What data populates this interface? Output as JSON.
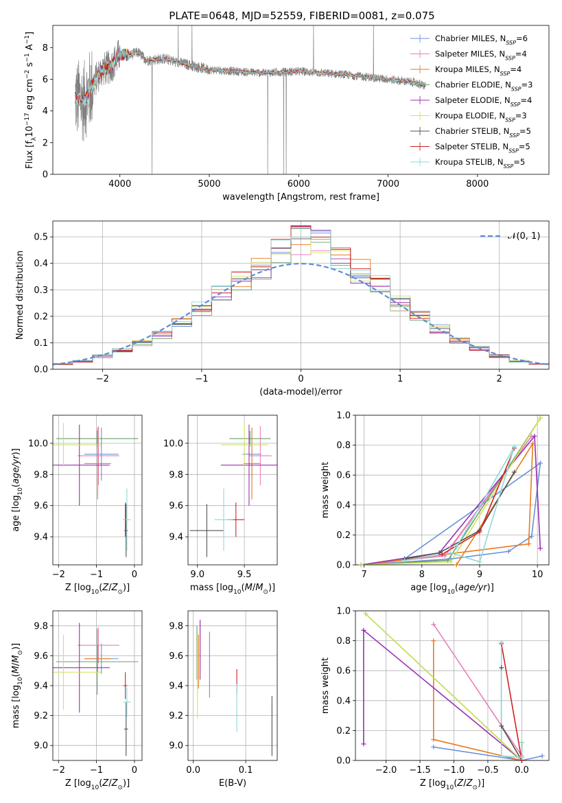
{
  "figure": {
    "title": "PLATE=0648, MJD=52559, FIBERID=0081, z=0.075"
  },
  "colors": {
    "Chabrier MILES": "#6a8fdc",
    "Salpeter MILES": "#e87dba",
    "Kroupa MILES": "#e87a1c",
    "Chabrier ELODIE": "#6aa06a",
    "Salpeter ELODIE": "#9a2fb0",
    "Kroupa ELODIE": "#cfe35a",
    "Chabrier STELIB": "#505050",
    "Salpeter STELIB": "#d22020",
    "Kroupa STELIB": "#8fd8d8"
  },
  "chart_data": [
    {
      "id": "spectrum",
      "type": "line",
      "title": "PLATE=0648, MJD=52559, FIBERID=0081, z=0.075",
      "xlabel": "wavelength [Angstrom, rest frame]",
      "ylabel": "Flux [f_λ 10^-17 erg cm^-2 s^-1 A^-1]",
      "xlim": [
        3250,
        8800
      ],
      "ylim": [
        0,
        9.4
      ],
      "xticks": [
        4000,
        5000,
        6000,
        7000,
        8000
      ],
      "yticks": [
        0,
        2,
        4,
        6,
        8
      ],
      "grid": false,
      "legend_position": "upper-right",
      "data_color": "#808080",
      "data_envelope": {
        "x": [
          3500,
          3600,
          3700,
          3800,
          3900,
          4000,
          4100,
          4200,
          4300,
          4500,
          4700,
          5000,
          5300,
          5600,
          6000,
          6500,
          7000,
          7300,
          7400
        ],
        "y": [
          4.8,
          4.6,
          5.7,
          6.6,
          6.8,
          7.6,
          7.5,
          7.7,
          7.2,
          7.3,
          7.0,
          6.6,
          6.5,
          6.4,
          6.5,
          6.3,
          6.0,
          5.8,
          5.6
        ]
      },
      "legend": [
        {
          "name": "Chabrier MILES",
          "nssp": "6"
        },
        {
          "name": "Salpeter MILES",
          "nssp": "4"
        },
        {
          "name": "Kroupa MILES",
          "nssp": "4"
        },
        {
          "name": "Chabrier ELODIE",
          "nssp": "3"
        },
        {
          "name": "Salpeter ELODIE",
          "nssp": "4"
        },
        {
          "name": "Kroupa ELODIE",
          "nssp": "3"
        },
        {
          "name": "Chabrier STELIB",
          "nssp": "5"
        },
        {
          "name": "Salpeter STELIB",
          "nssp": "5"
        },
        {
          "name": "Kroupa STELIB",
          "nssp": "5"
        }
      ]
    },
    {
      "id": "residuals",
      "type": "line",
      "xlabel": "(data-model)/error",
      "ylabel": "Normed distribution",
      "xlim": [
        -2.5,
        2.5
      ],
      "ylim": [
        0,
        0.56
      ],
      "xticks": [
        -2,
        -1,
        0,
        1,
        2
      ],
      "yticks": [
        0.0,
        0.1,
        0.2,
        0.3,
        0.4,
        0.5
      ],
      "grid": true,
      "legend_position": "upper-right",
      "legend_label": "𝒩(0, 1)",
      "gaussian_color": "#5b8bd8",
      "histogram_bins": [
        -2.5,
        -2.3,
        -2.1,
        -1.9,
        -1.7,
        -1.5,
        -1.3,
        -1.1,
        -0.9,
        -0.7,
        -0.5,
        -0.3,
        -0.1,
        0.1,
        0.3,
        0.5,
        0.7,
        0.9,
        1.1,
        1.3,
        1.5,
        1.7,
        1.9,
        2.1,
        2.3,
        2.5
      ],
      "histogram_values": [
        0.02,
        0.03,
        0.05,
        0.07,
        0.1,
        0.13,
        0.18,
        0.23,
        0.28,
        0.33,
        0.38,
        0.45,
        0.49,
        0.47,
        0.42,
        0.37,
        0.32,
        0.25,
        0.2,
        0.15,
        0.11,
        0.08,
        0.05,
        0.03,
        0.02
      ]
    },
    {
      "id": "age-vs-Z",
      "type": "scatter",
      "xlabel": "Z [log10(Z/Z⊙)]",
      "ylabel": "age  [log10(age/yr)]",
      "xlim": [
        -2.15,
        0.2
      ],
      "ylim": [
        9.22,
        10.18
      ],
      "xticks": [
        -2,
        -1,
        0
      ],
      "yticks": [
        9.4,
        9.6,
        9.8,
        10.0
      ],
      "grid": true,
      "points": [
        {
          "model": "Chabrier MILES",
          "x": -0.87,
          "y": 9.93,
          "xerr": 0.45,
          "yerr": 0.17
        },
        {
          "model": "Salpeter MILES",
          "x": -0.95,
          "y": 9.92,
          "xerr": 0.55,
          "yerr": 0.19
        },
        {
          "model": "Kroupa MILES",
          "x": -0.97,
          "y": 9.87,
          "xerr": 0.35,
          "yerr": 0.23
        },
        {
          "model": "Chabrier ELODIE",
          "x": -0.98,
          "y": 10.03,
          "xerr": 1.08,
          "yerr": 0.05
        },
        {
          "model": "Salpeter ELODIE",
          "x": -1.45,
          "y": 9.86,
          "xerr": 0.8,
          "yerr": 0.26
        },
        {
          "model": "Kroupa ELODIE",
          "x": -1.87,
          "y": 9.99,
          "xerr": 1.0,
          "yerr": 0.14
        },
        {
          "model": "Chabrier STELIB",
          "x": -0.22,
          "y": 9.44,
          "xerr": 0.05,
          "yerr": 0.17
        },
        {
          "model": "Salpeter STELIB",
          "x": -0.24,
          "y": 9.51,
          "xerr": 0.05,
          "yerr": 0.11
        },
        {
          "model": "Kroupa STELIB",
          "x": -0.2,
          "y": 9.51,
          "xerr": 0.1,
          "yerr": 0.2
        }
      ]
    },
    {
      "id": "age-vs-mass",
      "type": "scatter",
      "xlabel": "mass [log10(M/M⊙)]",
      "ylabel": "",
      "xlim": [
        8.9,
        9.85
      ],
      "ylim": [
        9.22,
        10.18
      ],
      "xticks": [
        9.0,
        9.5
      ],
      "yticks": [
        9.4,
        9.6,
        9.8,
        10.0
      ],
      "grid": true,
      "points": [
        {
          "model": "Chabrier MILES",
          "x": 9.58,
          "y": 9.93,
          "xerr": 0.1,
          "yerr": 0.17
        },
        {
          "model": "Salpeter MILES",
          "x": 9.67,
          "y": 9.92,
          "xerr": 0.12,
          "yerr": 0.19
        },
        {
          "model": "Kroupa MILES",
          "x": 9.58,
          "y": 9.87,
          "xerr": 0.09,
          "yerr": 0.23
        },
        {
          "model": "Chabrier ELODIE",
          "x": 9.56,
          "y": 10.03,
          "xerr": 0.22,
          "yerr": 0.05
        },
        {
          "model": "Salpeter ELODIE",
          "x": 9.55,
          "y": 9.86,
          "xerr": 0.3,
          "yerr": 0.26
        },
        {
          "model": "Kroupa ELODIE",
          "x": 9.5,
          "y": 9.99,
          "xerr": 0.25,
          "yerr": 0.14
        },
        {
          "model": "Chabrier STELIB",
          "x": 9.1,
          "y": 9.44,
          "xerr": 0.18,
          "yerr": 0.17
        },
        {
          "model": "Salpeter STELIB",
          "x": 9.41,
          "y": 9.51,
          "xerr": 0.09,
          "yerr": 0.11
        },
        {
          "model": "Kroupa STELIB",
          "x": 9.28,
          "y": 9.51,
          "xerr": 0.1,
          "yerr": 0.2
        }
      ]
    },
    {
      "id": "mass-weight-vs-age",
      "type": "line",
      "xlabel": "age  [log10(age/yr)]",
      "ylabel": "mass weight",
      "xlim": [
        6.85,
        10.2
      ],
      "ylim": [
        0,
        1.0
      ],
      "xticks": [
        7,
        8,
        9,
        10
      ],
      "yticks": [
        0.0,
        0.2,
        0.4,
        0.6,
        0.8,
        1.0
      ],
      "grid": true,
      "series": [
        {
          "model": "Chabrier MILES",
          "x": [
            6.95,
            8.5,
            9.5,
            9.9,
            10.05,
            7.7
          ],
          "y": [
            0.0,
            0.04,
            0.09,
            0.19,
            0.68,
            0.04
          ]
        },
        {
          "model": "Salpeter MILES",
          "x": [
            6.95,
            8.4,
            9.9,
            8.5
          ],
          "y": [
            0.0,
            0.06,
            0.86,
            0.12
          ]
        },
        {
          "model": "Kroupa MILES",
          "x": [
            6.95,
            9.85,
            9.92,
            8.6
          ],
          "y": [
            0.0,
            0.14,
            0.81,
            0.0
          ]
        },
        {
          "model": "Chabrier ELODIE",
          "x": [
            6.95,
            8.45,
            10.05
          ],
          "y": [
            0.0,
            0.03,
            0.98
          ]
        },
        {
          "model": "Salpeter ELODIE",
          "x": [
            6.95,
            8.3,
            9.95,
            10.05
          ],
          "y": [
            0.0,
            0.08,
            0.86,
            0.11
          ]
        },
        {
          "model": "Kroupa ELODIE",
          "x": [
            6.95,
            8.5,
            10.05
          ],
          "y": [
            0.0,
            0.02,
            0.98
          ]
        },
        {
          "model": "Chabrier STELIB",
          "x": [
            7.7,
            8.3,
            9.0,
            9.6
          ],
          "y": [
            0.04,
            0.08,
            0.23,
            0.62
          ]
        },
        {
          "model": "Salpeter STELIB",
          "x": [
            7.7,
            8.35,
            9.0,
            9.6
          ],
          "y": [
            0.03,
            0.07,
            0.22,
            0.78
          ]
        },
        {
          "model": "Kroupa STELIB",
          "x": [
            7.7,
            8.5,
            9.0,
            9.6,
            8.6
          ],
          "y": [
            0.03,
            0.08,
            0.02,
            0.79,
            0.12
          ]
        }
      ]
    },
    {
      "id": "mass-vs-Z",
      "type": "scatter",
      "xlabel": "Z [log10(Z/Z⊙)]",
      "ylabel": "mass [log10(M/M⊙)]",
      "xlim": [
        -2.15,
        0.2
      ],
      "ylim": [
        8.9,
        9.9
      ],
      "xticks": [
        -2,
        -1,
        0
      ],
      "yticks": [
        9.0,
        9.2,
        9.4,
        9.6,
        9.8
      ],
      "grid": true,
      "points": [
        {
          "model": "Chabrier MILES",
          "x": -0.87,
          "y": 9.58,
          "xerr": 0.45,
          "yerr": 0.1
        },
        {
          "model": "Salpeter MILES",
          "x": -0.95,
          "y": 9.67,
          "xerr": 0.55,
          "yerr": 0.12
        },
        {
          "model": "Kroupa MILES",
          "x": -0.97,
          "y": 9.58,
          "xerr": 0.35,
          "yerr": 0.09
        },
        {
          "model": "Chabrier ELODIE",
          "x": -0.98,
          "y": 9.56,
          "xerr": 1.08,
          "yerr": 0.22
        },
        {
          "model": "Salpeter ELODIE",
          "x": -1.45,
          "y": 9.52,
          "xerr": 0.8,
          "yerr": 0.3
        },
        {
          "model": "Kroupa ELODIE",
          "x": -1.87,
          "y": 9.49,
          "xerr": 1.0,
          "yerr": 0.25
        },
        {
          "model": "Chabrier STELIB",
          "x": -0.22,
          "y": 9.11,
          "xerr": 0.05,
          "yerr": 0.18
        },
        {
          "model": "Salpeter STELIB",
          "x": -0.24,
          "y": 9.4,
          "xerr": 0.05,
          "yerr": 0.09
        },
        {
          "model": "Kroupa STELIB",
          "x": -0.2,
          "y": 9.29,
          "xerr": 0.1,
          "yerr": 0.1
        }
      ]
    },
    {
      "id": "mass-vs-ebv",
      "type": "scatter",
      "xlabel": "E(B-V)",
      "ylabel": "",
      "xlim": [
        -0.01,
        0.16
      ],
      "ylim": [
        8.9,
        9.9
      ],
      "xticks": [
        0.0,
        0.1
      ],
      "yticks": [
        9.0,
        9.2,
        9.4,
        9.6,
        9.8
      ],
      "grid": true,
      "points": [
        {
          "model": "Chabrier MILES",
          "x": 0.031,
          "y": 9.54,
          "yerr": 0.22
        },
        {
          "model": "Salpeter MILES",
          "x": 0.013,
          "y": 9.68,
          "yerr": 0.16
        },
        {
          "model": "Kroupa MILES",
          "x": 0.01,
          "y": 9.56,
          "yerr": 0.18
        },
        {
          "model": "Chabrier ELODIE",
          "x": 0.007,
          "y": 9.62,
          "yerr": 0.18
        },
        {
          "model": "Salpeter ELODIE",
          "x": 0.013,
          "y": 9.64,
          "yerr": 0.2
        },
        {
          "model": "Kroupa ELODIE",
          "x": 0.008,
          "y": 9.47,
          "yerr": 0.29
        },
        {
          "model": "Chabrier STELIB",
          "x": 0.15,
          "y": 9.13,
          "yerr": 0.2
        },
        {
          "model": "Salpeter STELIB",
          "x": 0.083,
          "y": 9.43,
          "yerr": 0.08
        },
        {
          "model": "Kroupa STELIB",
          "x": 0.083,
          "y": 9.25,
          "yerr": 0.16
        }
      ]
    },
    {
      "id": "mass-weight-vs-Z",
      "type": "line",
      "xlabel": "Z [log10(Z/Z⊙)]",
      "ylabel": "mass weight",
      "xlim": [
        -2.45,
        0.4
      ],
      "ylim": [
        0,
        1.0
      ],
      "xticks": [
        -2.0,
        -1.5,
        -1.0,
        -0.5,
        0.0
      ],
      "yticks": [
        0.0,
        0.2,
        0.4,
        0.6,
        0.8,
        1.0
      ],
      "grid": true,
      "series": [
        {
          "model": "Chabrier MILES",
          "x": [
            -1.3,
            0.0,
            0.3
          ],
          "y": [
            0.09,
            0.0,
            0.03
          ]
        },
        {
          "model": "Salpeter MILES",
          "x": [
            -1.3,
            0.0
          ],
          "y": [
            0.91,
            0.03
          ]
        },
        {
          "model": "Kroupa MILES",
          "x": [
            -1.3,
            -1.3,
            0.0
          ],
          "y": [
            0.8,
            0.14,
            0.0
          ]
        },
        {
          "model": "Chabrier ELODIE",
          "x": [
            -2.3,
            0.0
          ],
          "y": [
            0.98,
            0.0
          ]
        },
        {
          "model": "Salpeter ELODIE",
          "x": [
            -2.33,
            -2.33,
            0.0
          ],
          "y": [
            0.11,
            0.87,
            0.0
          ]
        },
        {
          "model": "Kroupa ELODIE",
          "x": [
            -2.3,
            0.0
          ],
          "y": [
            0.98,
            0.0
          ]
        },
        {
          "model": "Chabrier STELIB",
          "x": [
            -0.3,
            -0.3,
            0.0,
            0.0
          ],
          "y": [
            0.62,
            0.23,
            0.0,
            0.12
          ]
        },
        {
          "model": "Salpeter STELIB",
          "x": [
            -0.3,
            0.0
          ],
          "y": [
            0.78,
            0.0
          ]
        },
        {
          "model": "Kroupa STELIB",
          "x": [
            -0.3,
            -0.3,
            0.0,
            0.0
          ],
          "y": [
            0.79,
            0.03,
            0.02,
            0.12
          ]
        }
      ]
    }
  ]
}
